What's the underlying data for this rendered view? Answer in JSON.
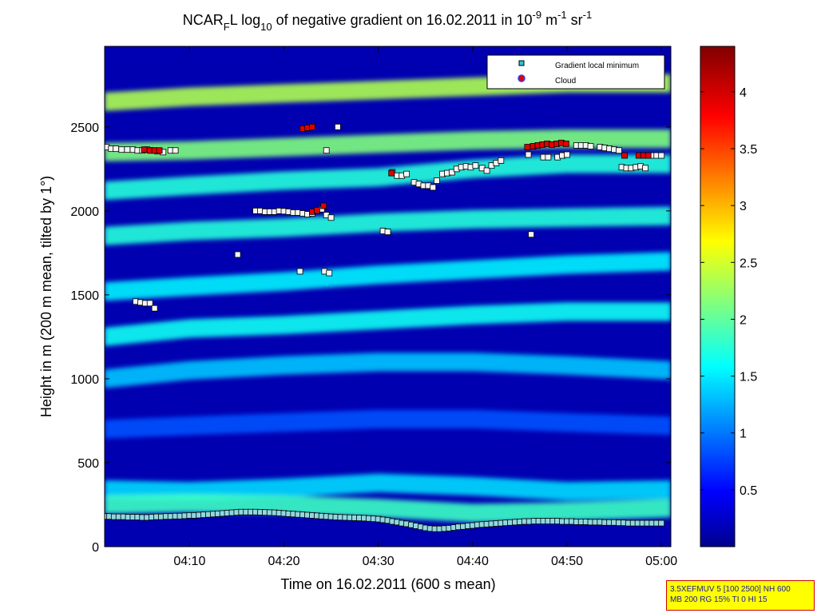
{
  "chart_data": {
    "type": "heatmap",
    "title": {
      "prefix": "NCAR",
      "prefix_sub": "F",
      "part1": "L log",
      "log_sub": "10",
      "part2": " of negative gradient on 16.02.2011 in 10",
      "exp1": "-9",
      "part3": " m",
      "exp2": "-1",
      "part4": " sr",
      "exp3": "-1"
    },
    "xlabel": "Time on 16.02.2011 (600 s mean)",
    "ylabel": "Height in m (200 m mean, tilted by 1°)",
    "xlim_minutes": [
      241,
      301
    ],
    "ylim": [
      0,
      2980
    ],
    "x_ticks": [
      {
        "minute": 250,
        "label": "04:10"
      },
      {
        "minute": 260,
        "label": "04:20"
      },
      {
        "minute": 270,
        "label": "04:30"
      },
      {
        "minute": 280,
        "label": "04:40"
      },
      {
        "minute": 290,
        "label": "04:50"
      },
      {
        "minute": 300,
        "label": "05:00"
      }
    ],
    "y_ticks": [
      0,
      500,
      1000,
      1500,
      2000,
      2500
    ],
    "colorbar": {
      "range": [
        0,
        4.4
      ],
      "ticks": [
        "0.5",
        "1",
        "1.5",
        "2",
        "2.5",
        "3",
        "3.5",
        "4"
      ],
      "colormap": "jet"
    },
    "legend": {
      "position": "top-right",
      "entries": [
        "Gradient local minimum",
        "Cloud"
      ]
    },
    "layers": [
      {
        "minutes": [
          241,
          250,
          260,
          270,
          280,
          290,
          301
        ],
        "heights": [
          340,
          330,
          350,
          380,
          360,
          330,
          340
        ],
        "value": 1.5
      },
      {
        "minutes": [
          241,
          250,
          260,
          270,
          280,
          290,
          301
        ],
        "heights": [
          250,
          260,
          250,
          230,
          200,
          210,
          230
        ],
        "value": 1.9
      },
      {
        "minutes": [
          241,
          250,
          260,
          270,
          280,
          290,
          301
        ],
        "heights": [
          700,
          720,
          740,
          760,
          760,
          740,
          720
        ],
        "value": 0.9
      },
      {
        "minutes": [
          241,
          250,
          260,
          270,
          280,
          290,
          301
        ],
        "heights": [
          1000,
          1050,
          1080,
          1100,
          1100,
          1080,
          1050
        ],
        "value": 1.4
      },
      {
        "minutes": [
          241,
          250,
          260,
          270,
          280,
          290,
          301
        ],
        "heights": [
          1250,
          1300,
          1320,
          1350,
          1380,
          1400,
          1400
        ],
        "value": 1.7
      },
      {
        "minutes": [
          241,
          250,
          260,
          270,
          280,
          290,
          301
        ],
        "heights": [
          1520,
          1550,
          1580,
          1620,
          1650,
          1680,
          1700
        ],
        "value": 1.6
      },
      {
        "minutes": [
          241,
          250,
          260,
          270,
          280,
          290,
          301
        ],
        "heights": [
          1850,
          1880,
          1900,
          1930,
          1950,
          1960,
          1970
        ],
        "value": 1.8
      },
      {
        "minutes": [
          241,
          250,
          260,
          270,
          280,
          290,
          301
        ],
        "heights": [
          2120,
          2150,
          2180,
          2200,
          2250,
          2280,
          2280
        ],
        "value": 1.8
      },
      {
        "minutes": [
          241,
          250,
          260,
          270,
          280,
          290,
          301
        ],
        "heights": [
          2350,
          2360,
          2380,
          2400,
          2420,
          2430,
          2430
        ],
        "value": 2.2
      },
      {
        "minutes": [
          241,
          250,
          260,
          270,
          280,
          290,
          301
        ],
        "heights": [
          2650,
          2680,
          2700,
          2720,
          2740,
          2760,
          2760
        ],
        "value": 2.4
      }
    ],
    "series": [
      {
        "name": "Gradient local minimum",
        "points": [
          [
            241.0,
            180
          ],
          [
            241.5,
            180
          ],
          [
            242.0,
            178
          ],
          [
            242.5,
            178
          ],
          [
            243,
            178
          ],
          [
            243.5,
            176
          ],
          [
            244,
            176
          ],
          [
            244.5,
            176
          ],
          [
            245,
            174
          ],
          [
            245.5,
            174
          ],
          [
            246,
            176
          ],
          [
            246.5,
            178
          ],
          [
            247,
            178
          ],
          [
            247.5,
            180
          ],
          [
            248,
            180
          ],
          [
            248.5,
            182
          ],
          [
            249,
            182
          ],
          [
            249.5,
            184
          ],
          [
            250,
            186
          ],
          [
            250.5,
            186
          ],
          [
            251,
            188
          ],
          [
            251.5,
            190
          ],
          [
            252,
            192
          ],
          [
            252.5,
            194
          ],
          [
            253,
            196
          ],
          [
            253.5,
            198
          ],
          [
            254,
            200
          ],
          [
            254.5,
            202
          ],
          [
            255,
            204
          ],
          [
            255.5,
            206
          ],
          [
            256,
            206
          ],
          [
            256.5,
            206
          ],
          [
            257,
            206
          ],
          [
            257.5,
            205
          ],
          [
            258,
            204
          ],
          [
            258.5,
            203
          ],
          [
            259,
            202
          ],
          [
            259.5,
            200
          ],
          [
            260,
            198
          ],
          [
            260.5,
            196
          ],
          [
            261,
            194
          ],
          [
            261.5,
            192
          ],
          [
            262,
            190
          ],
          [
            262.5,
            188
          ],
          [
            263,
            186
          ],
          [
            263.5,
            184
          ],
          [
            264,
            182
          ],
          [
            264.5,
            180
          ],
          [
            265,
            178
          ],
          [
            265.5,
            176
          ],
          [
            266,
            175
          ],
          [
            266.5,
            174
          ],
          [
            267,
            173
          ],
          [
            267.5,
            172
          ],
          [
            268,
            171
          ],
          [
            268.5,
            170
          ],
          [
            269,
            168
          ],
          [
            269.5,
            166
          ],
          [
            270,
            164
          ],
          [
            270.5,
            160
          ],
          [
            271,
            156
          ],
          [
            271.5,
            150
          ],
          [
            272,
            146
          ],
          [
            272.5,
            140
          ],
          [
            273,
            136
          ],
          [
            273.5,
            130
          ],
          [
            274,
            124
          ],
          [
            274.5,
            118
          ],
          [
            275,
            112
          ],
          [
            275.5,
            108
          ],
          [
            276,
            106
          ],
          [
            276.5,
            106
          ],
          [
            277,
            108
          ],
          [
            277.5,
            110
          ],
          [
            278,
            114
          ],
          [
            278.5,
            118
          ],
          [
            279,
            120
          ],
          [
            279.5,
            124
          ],
          [
            280,
            126
          ],
          [
            280.5,
            130
          ],
          [
            281,
            132
          ],
          [
            281.5,
            134
          ],
          [
            282,
            136
          ],
          [
            282.5,
            138
          ],
          [
            283,
            140
          ],
          [
            283.5,
            142
          ],
          [
            284,
            144
          ],
          [
            284.5,
            146
          ],
          [
            285,
            148
          ],
          [
            285.5,
            150
          ],
          [
            286,
            150
          ],
          [
            286.5,
            152
          ],
          [
            287,
            152
          ],
          [
            287.5,
            152
          ],
          [
            288,
            152
          ],
          [
            288.5,
            152
          ],
          [
            289,
            152
          ],
          [
            289.5,
            150
          ],
          [
            290,
            150
          ],
          [
            290.5,
            150
          ],
          [
            291,
            148
          ],
          [
            291.5,
            148
          ],
          [
            292,
            148
          ],
          [
            292.5,
            146
          ],
          [
            293,
            146
          ],
          [
            293.5,
            146
          ],
          [
            294,
            144
          ],
          [
            294.5,
            144
          ],
          [
            295,
            144
          ],
          [
            295.5,
            142
          ],
          [
            296,
            142
          ],
          [
            296.5,
            140
          ],
          [
            297,
            140
          ],
          [
            297.5,
            140
          ],
          [
            298,
            140
          ],
          [
            298.5,
            140
          ],
          [
            299,
            140
          ],
          [
            299.5,
            140
          ],
          [
            300,
            140
          ],
          [
            241.2,
            2380
          ],
          [
            241.7,
            2370
          ],
          [
            242.2,
            2370
          ],
          [
            242.8,
            2365
          ],
          [
            243.4,
            2365
          ],
          [
            244,
            2365
          ],
          [
            244.5,
            2360
          ],
          [
            245,
            2360
          ],
          [
            245.5,
            2365
          ],
          [
            246,
            2360
          ],
          [
            246.6,
            2355
          ],
          [
            247.2,
            2350
          ],
          [
            248,
            2360
          ],
          [
            248.5,
            2360
          ],
          [
            244.3,
            1460
          ],
          [
            244.8,
            1455
          ],
          [
            245.3,
            1450
          ],
          [
            245.8,
            1450
          ],
          [
            246.3,
            1420
          ],
          [
            255.1,
            1740
          ],
          [
            257,
            2000
          ],
          [
            257.5,
            2000
          ],
          [
            258,
            1995
          ],
          [
            258.5,
            1995
          ],
          [
            259,
            1995
          ],
          [
            259.5,
            2000
          ],
          [
            260,
            1998
          ],
          [
            260.5,
            1995
          ],
          [
            261,
            1990
          ],
          [
            261.5,
            1990
          ],
          [
            262,
            1985
          ],
          [
            262.5,
            1980
          ],
          [
            263,
            1985
          ],
          [
            263.5,
            2000
          ],
          [
            264,
            2010
          ],
          [
            264.5,
            1975
          ],
          [
            265,
            1960
          ],
          [
            261.7,
            1640
          ],
          [
            264.3,
            1640
          ],
          [
            264.8,
            1630
          ],
          [
            265.7,
            2500
          ],
          [
            264.5,
            2360
          ],
          [
            270.5,
            1880
          ],
          [
            271,
            1875
          ],
          [
            271.5,
            2230
          ],
          [
            272,
            2210
          ],
          [
            272.5,
            2210
          ],
          [
            273,
            2220
          ],
          [
            273.8,
            2170
          ],
          [
            274.3,
            2160
          ],
          [
            274.8,
            2150
          ],
          [
            275.3,
            2150
          ],
          [
            275.8,
            2140
          ],
          [
            276.2,
            2180
          ],
          [
            276.8,
            2220
          ],
          [
            277.3,
            2225
          ],
          [
            277.8,
            2230
          ],
          [
            278.3,
            2250
          ],
          [
            278.8,
            2260
          ],
          [
            279.3,
            2265
          ],
          [
            279.8,
            2260
          ],
          [
            280.3,
            2270
          ],
          [
            281,
            2255
          ],
          [
            281.5,
            2240
          ],
          [
            282,
            2270
          ],
          [
            282.5,
            2285
          ],
          [
            283,
            2300
          ],
          [
            285.9,
            2335
          ],
          [
            286.2,
            1860
          ],
          [
            287.5,
            2320
          ],
          [
            288,
            2320
          ],
          [
            289,
            2320
          ],
          [
            289.5,
            2330
          ],
          [
            290,
            2335
          ],
          [
            291,
            2390
          ],
          [
            291.5,
            2390
          ],
          [
            292,
            2390
          ],
          [
            292.5,
            2385
          ],
          [
            293.5,
            2380
          ],
          [
            294,
            2375
          ],
          [
            294.5,
            2370
          ],
          [
            295,
            2365
          ],
          [
            295.5,
            2360
          ],
          [
            295.8,
            2260
          ],
          [
            296.3,
            2255
          ],
          [
            296.8,
            2255
          ],
          [
            297.3,
            2260
          ],
          [
            297.8,
            2265
          ],
          [
            298.3,
            2255
          ],
          [
            299,
            2330
          ],
          [
            299.5,
            2330
          ],
          [
            300,
            2330
          ]
        ]
      },
      {
        "name": "Cloud",
        "points": [
          [
            245.2,
            2365
          ],
          [
            245.8,
            2360
          ],
          [
            246.3,
            2360
          ],
          [
            246.8,
            2360
          ],
          [
            262,
            2490
          ],
          [
            262.5,
            2495
          ],
          [
            263,
            2500
          ],
          [
            263,
            1995
          ],
          [
            263.5,
            2005
          ],
          [
            264.2,
            2030
          ],
          [
            271.4,
            2225
          ],
          [
            285.8,
            2380
          ],
          [
            286.4,
            2385
          ],
          [
            286.9,
            2390
          ],
          [
            287.4,
            2395
          ],
          [
            287.9,
            2400
          ],
          [
            288.4,
            2395
          ],
          [
            288.9,
            2400
          ],
          [
            289.4,
            2405
          ],
          [
            289.9,
            2400
          ],
          [
            296.1,
            2330
          ],
          [
            297.6,
            2330
          ],
          [
            298.1,
            2330
          ],
          [
            298.6,
            2330
          ]
        ]
      }
    ]
  },
  "info_box": {
    "line1": "3.5XEFMUV 5 [100 2500] NH 600",
    "line2": "MB 200 RG 15% TI 0 HI 15"
  }
}
